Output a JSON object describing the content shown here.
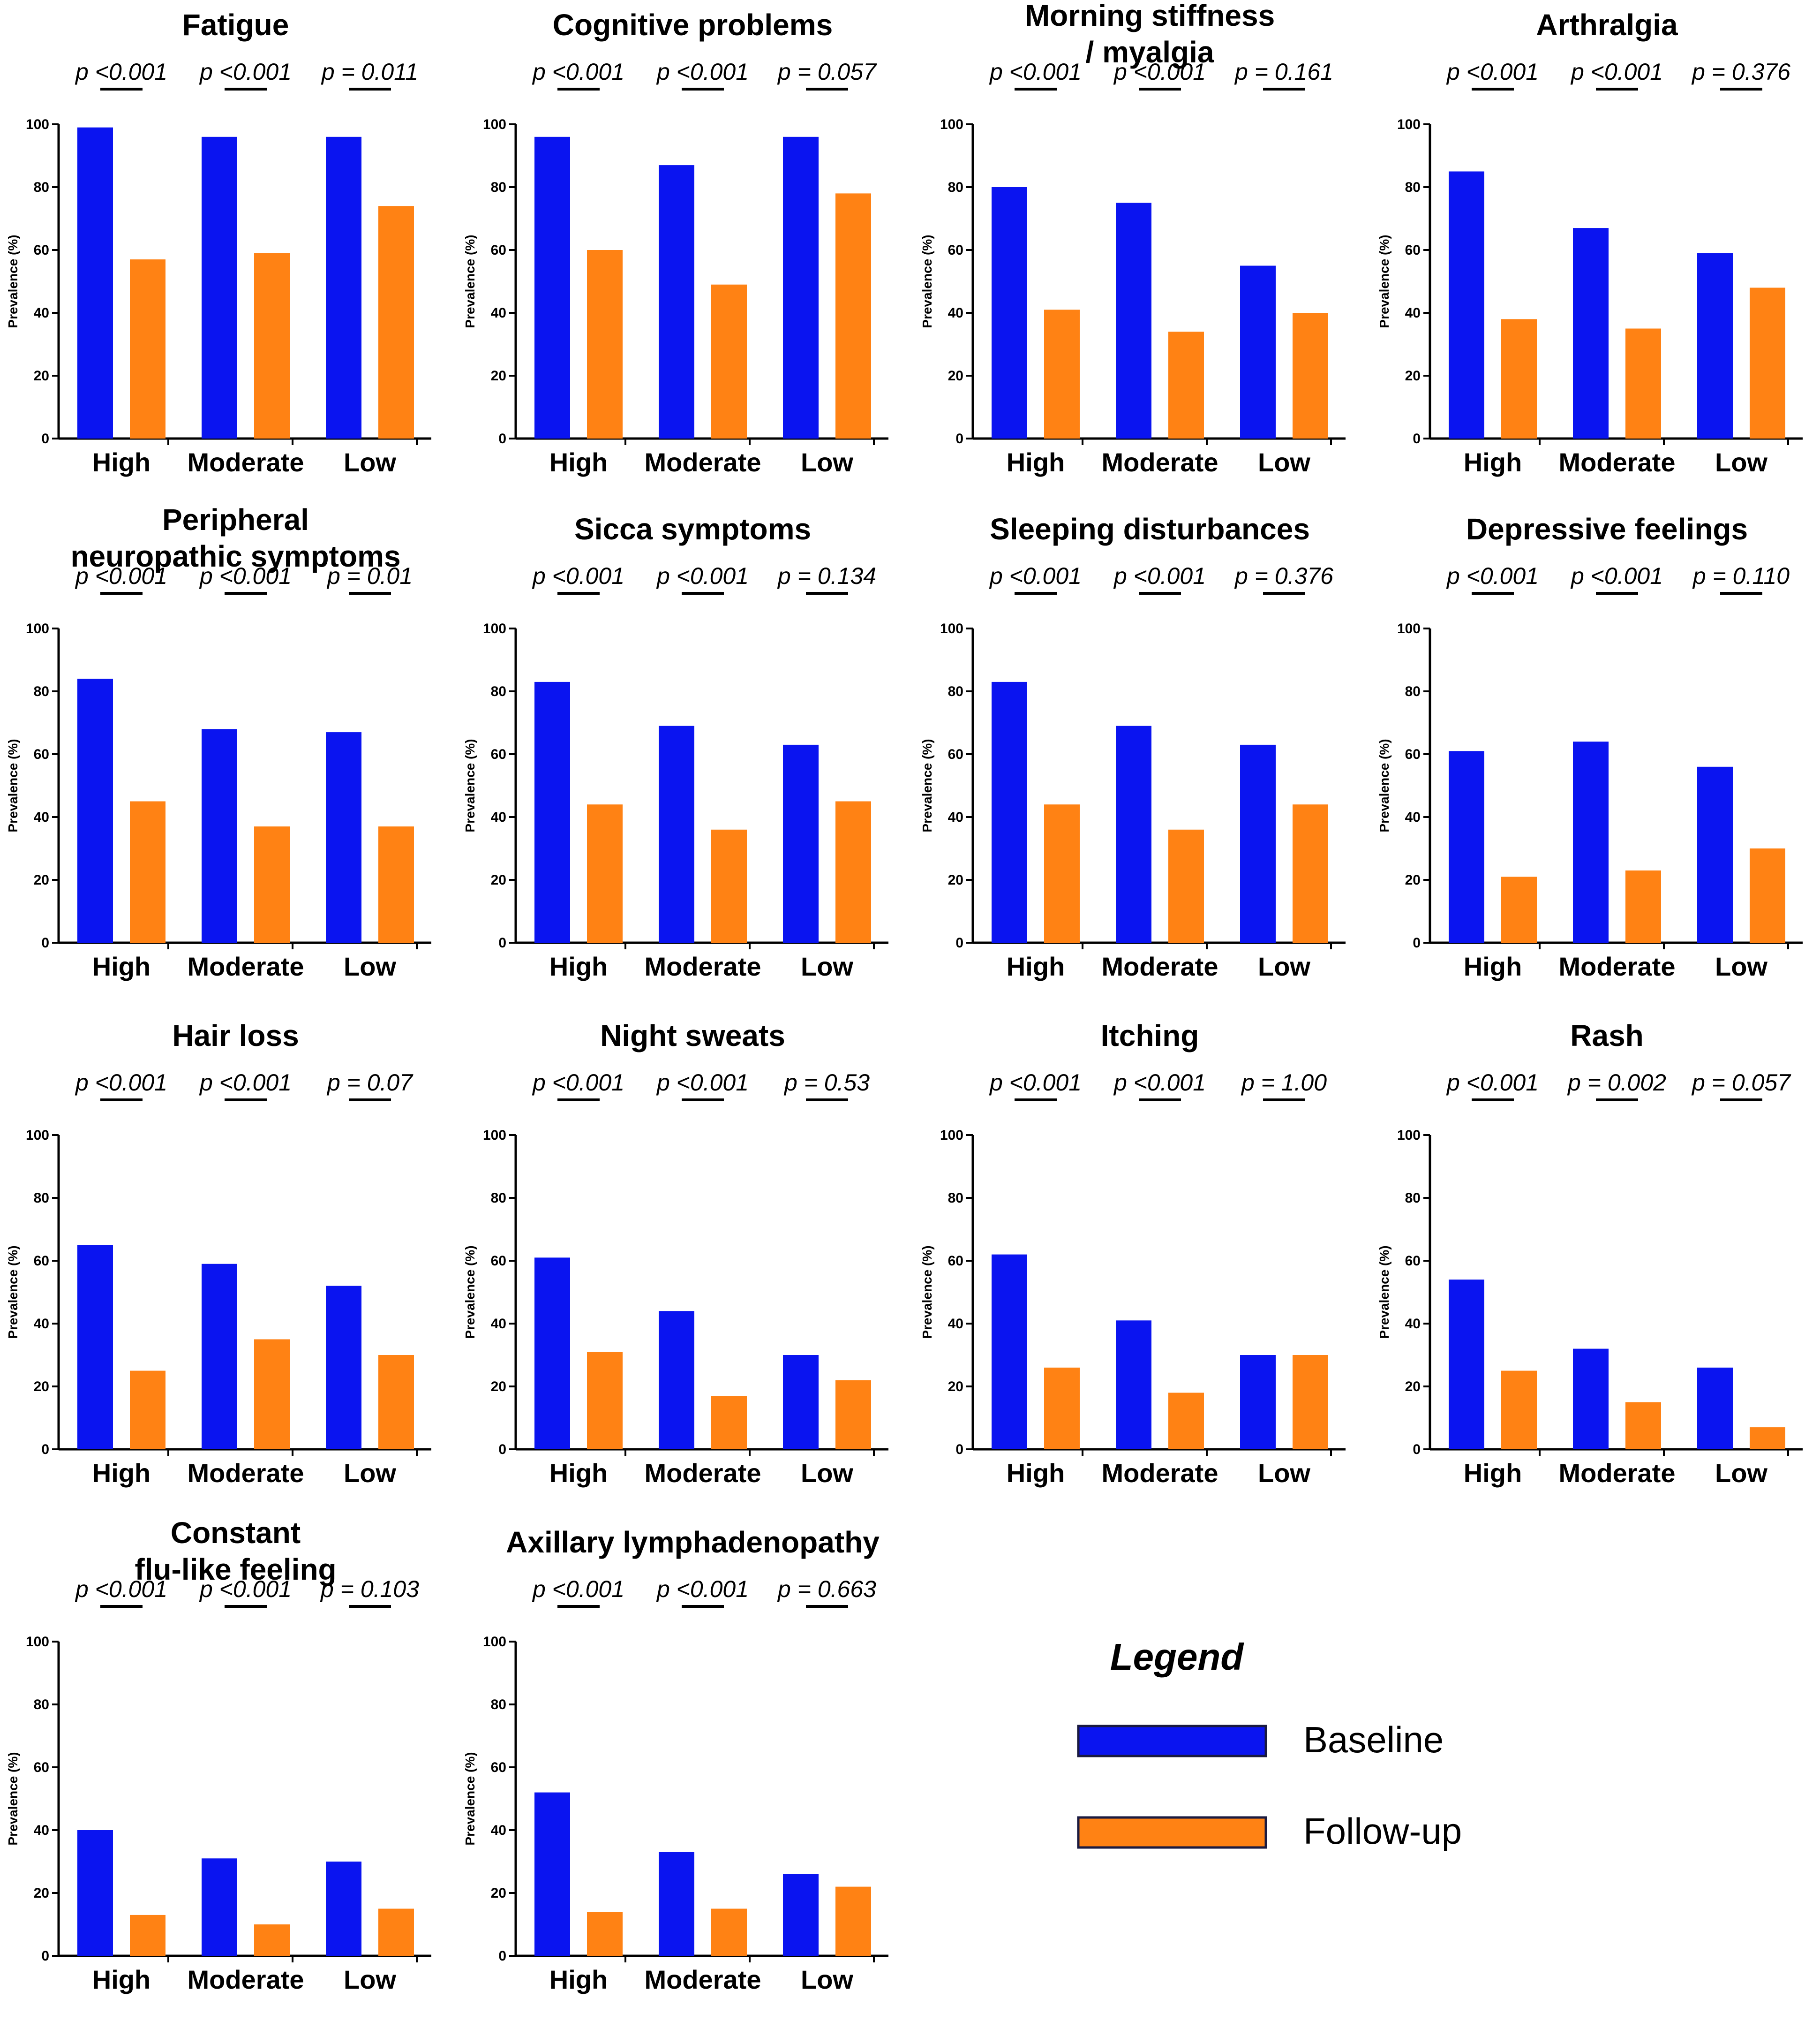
{
  "figure": {
    "y_axis_label": "Prevalence (%)",
    "groups": [
      "High",
      "Moderate",
      "Low"
    ],
    "series_names": [
      "Baseline",
      "Follow-up"
    ],
    "colors": {
      "baseline": "#0a14f0",
      "followup": "#ff8214",
      "axis": "#000000",
      "text": "#000000"
    }
  },
  "legend": {
    "title": "Legend",
    "items": [
      "Baseline",
      "Follow-up"
    ]
  },
  "chart_data": [
    {
      "type": "bar",
      "title": "Fatigue",
      "ylabel": "Prevalence (%)",
      "ylim": [
        0,
        100
      ],
      "yticks": [
        0,
        20,
        40,
        60,
        80,
        100
      ],
      "categories": [
        "High",
        "Moderate",
        "Low"
      ],
      "series": [
        {
          "name": "Baseline",
          "values": [
            99,
            96,
            96
          ]
        },
        {
          "name": "Follow-up",
          "values": [
            57,
            59,
            74
          ]
        }
      ],
      "pvalues": [
        "p <0.001",
        "p <0.001",
        "p = 0.011"
      ]
    },
    {
      "type": "bar",
      "title": "Cognitive problems",
      "ylabel": "Prevalence (%)",
      "ylim": [
        0,
        100
      ],
      "yticks": [
        0,
        20,
        40,
        60,
        80,
        100
      ],
      "categories": [
        "High",
        "Moderate",
        "Low"
      ],
      "series": [
        {
          "name": "Baseline",
          "values": [
            96,
            87,
            96
          ]
        },
        {
          "name": "Follow-up",
          "values": [
            60,
            49,
            78
          ]
        }
      ],
      "pvalues": [
        "p <0.001",
        "p <0.001",
        "p = 0.057"
      ]
    },
    {
      "type": "bar",
      "title": "Morning stiffness / myalgia",
      "ylabel": "Prevalence (%)",
      "ylim": [
        0,
        100
      ],
      "yticks": [
        0,
        20,
        40,
        60,
        80,
        100
      ],
      "categories": [
        "High",
        "Moderate",
        "Low"
      ],
      "series": [
        {
          "name": "Baseline",
          "values": [
            80,
            75,
            55
          ]
        },
        {
          "name": "Follow-up",
          "values": [
            41,
            34,
            40
          ]
        }
      ],
      "pvalues": [
        "p <0.001",
        "p <0.001",
        "p = 0.161"
      ]
    },
    {
      "type": "bar",
      "title": "Arthralgia",
      "ylabel": "Prevalence (%)",
      "ylim": [
        0,
        100
      ],
      "yticks": [
        0,
        20,
        40,
        60,
        80,
        100
      ],
      "categories": [
        "High",
        "Moderate",
        "Low"
      ],
      "series": [
        {
          "name": "Baseline",
          "values": [
            85,
            67,
            59
          ]
        },
        {
          "name": "Follow-up",
          "values": [
            38,
            35,
            48
          ]
        }
      ],
      "pvalues": [
        "p <0.001",
        "p <0.001",
        "p = 0.376"
      ]
    },
    {
      "type": "bar",
      "title": "Peripheral neuropathic symptoms",
      "ylabel": "Prevalence (%)",
      "ylim": [
        0,
        100
      ],
      "yticks": [
        0,
        20,
        40,
        60,
        80,
        100
      ],
      "categories": [
        "High",
        "Moderate",
        "Low"
      ],
      "series": [
        {
          "name": "Baseline",
          "values": [
            84,
            68,
            67
          ]
        },
        {
          "name": "Follow-up",
          "values": [
            45,
            37,
            37
          ]
        }
      ],
      "pvalues": [
        "p <0.001",
        "p <0.001",
        "p = 0.01"
      ]
    },
    {
      "type": "bar",
      "title": "Sicca symptoms",
      "ylabel": "Prevalence (%)",
      "ylim": [
        0,
        100
      ],
      "yticks": [
        0,
        20,
        40,
        60,
        80,
        100
      ],
      "categories": [
        "High",
        "Moderate",
        "Low"
      ],
      "series": [
        {
          "name": "Baseline",
          "values": [
            83,
            69,
            63
          ]
        },
        {
          "name": "Follow-up",
          "values": [
            44,
            36,
            45
          ]
        }
      ],
      "pvalues": [
        "p <0.001",
        "p <0.001",
        "p = 0.134"
      ]
    },
    {
      "type": "bar",
      "title": "Sleeping disturbances",
      "ylabel": "Prevalence (%)",
      "ylim": [
        0,
        100
      ],
      "yticks": [
        0,
        20,
        40,
        60,
        80,
        100
      ],
      "categories": [
        "High",
        "Moderate",
        "Low"
      ],
      "series": [
        {
          "name": "Baseline",
          "values": [
            83,
            69,
            63
          ]
        },
        {
          "name": "Follow-up",
          "values": [
            44,
            36,
            44
          ]
        }
      ],
      "pvalues": [
        "p <0.001",
        "p <0.001",
        "p = 0.376"
      ]
    },
    {
      "type": "bar",
      "title": "Depressive feelings",
      "ylabel": "Prevalence (%)",
      "ylim": [
        0,
        100
      ],
      "yticks": [
        0,
        20,
        40,
        60,
        80,
        100
      ],
      "categories": [
        "High",
        "Moderate",
        "Low"
      ],
      "series": [
        {
          "name": "Baseline",
          "values": [
            61,
            64,
            56
          ]
        },
        {
          "name": "Follow-up",
          "values": [
            21,
            23,
            30
          ]
        }
      ],
      "pvalues": [
        "p <0.001",
        "p <0.001",
        "p = 0.110"
      ]
    },
    {
      "type": "bar",
      "title": "Hair loss",
      "ylabel": "Prevalence (%)",
      "ylim": [
        0,
        100
      ],
      "yticks": [
        0,
        20,
        40,
        60,
        80,
        100
      ],
      "categories": [
        "High",
        "Moderate",
        "Low"
      ],
      "series": [
        {
          "name": "Baseline",
          "values": [
            65,
            59,
            52
          ]
        },
        {
          "name": "Follow-up",
          "values": [
            25,
            35,
            30
          ]
        }
      ],
      "pvalues": [
        "p <0.001",
        "p <0.001",
        "p = 0.07"
      ]
    },
    {
      "type": "bar",
      "title": "Night sweats",
      "ylabel": "Prevalence (%)",
      "ylim": [
        0,
        100
      ],
      "yticks": [
        0,
        20,
        40,
        60,
        80,
        100
      ],
      "categories": [
        "High",
        "Moderate",
        "Low"
      ],
      "series": [
        {
          "name": "Baseline",
          "values": [
            61,
            44,
            30
          ]
        },
        {
          "name": "Follow-up",
          "values": [
            31,
            17,
            22
          ]
        }
      ],
      "pvalues": [
        "p <0.001",
        "p <0.001",
        "p = 0.53"
      ]
    },
    {
      "type": "bar",
      "title": "Itching",
      "ylabel": "Prevalence (%)",
      "ylim": [
        0,
        100
      ],
      "yticks": [
        0,
        20,
        40,
        60,
        80,
        100
      ],
      "categories": [
        "High",
        "Moderate",
        "Low"
      ],
      "series": [
        {
          "name": "Baseline",
          "values": [
            62,
            41,
            30
          ]
        },
        {
          "name": "Follow-up",
          "values": [
            26,
            18,
            30
          ]
        }
      ],
      "pvalues": [
        "p <0.001",
        "p <0.001",
        "p = 1.00"
      ]
    },
    {
      "type": "bar",
      "title": "Rash",
      "ylabel": "Prevalence (%)",
      "ylim": [
        0,
        100
      ],
      "yticks": [
        0,
        20,
        40,
        60,
        80,
        100
      ],
      "categories": [
        "High",
        "Moderate",
        "Low"
      ],
      "series": [
        {
          "name": "Baseline",
          "values": [
            54,
            32,
            26
          ]
        },
        {
          "name": "Follow-up",
          "values": [
            25,
            15,
            7
          ]
        }
      ],
      "pvalues": [
        "p <0.001",
        "p = 0.002",
        "p = 0.057"
      ]
    },
    {
      "type": "bar",
      "title": "Constant flu-like feeling",
      "ylabel": "Prevalence (%)",
      "ylim": [
        0,
        100
      ],
      "yticks": [
        0,
        20,
        40,
        60,
        80,
        100
      ],
      "categories": [
        "High",
        "Moderate",
        "Low"
      ],
      "series": [
        {
          "name": "Baseline",
          "values": [
            40,
            31,
            30
          ]
        },
        {
          "name": "Follow-up",
          "values": [
            13,
            10,
            15
          ]
        }
      ],
      "pvalues": [
        "p <0.001",
        "p <0.001",
        "p = 0.103"
      ]
    },
    {
      "type": "bar",
      "title": "Axillary lymphadenopathy",
      "ylabel": "Prevalence (%)",
      "ylim": [
        0,
        100
      ],
      "yticks": [
        0,
        20,
        40,
        60,
        80,
        100
      ],
      "categories": [
        "High",
        "Moderate",
        "Low"
      ],
      "series": [
        {
          "name": "Baseline",
          "values": [
            52,
            33,
            26
          ]
        },
        {
          "name": "Follow-up",
          "values": [
            14,
            15,
            22
          ]
        }
      ],
      "pvalues": [
        "p <0.001",
        "p <0.001",
        "p = 0.663"
      ]
    }
  ]
}
